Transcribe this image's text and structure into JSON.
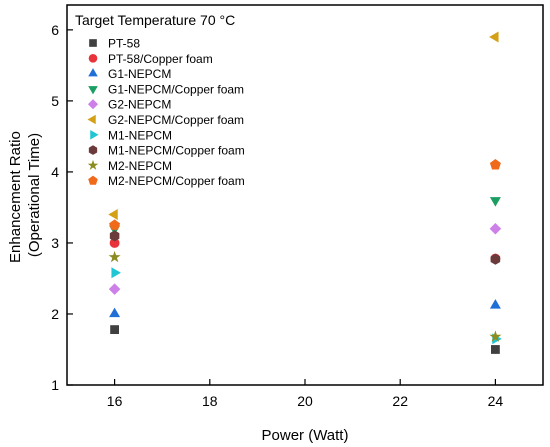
{
  "chart_data": {
    "type": "scatter",
    "title": "Target Temperature 70 °C",
    "xlabel": "Power (Watt)",
    "ylabel_lines": [
      "Enhancement Ratio",
      "(Operational Time)"
    ],
    "xlim": [
      15,
      25
    ],
    "ylim": [
      1,
      6.35
    ],
    "xticks": [
      16,
      18,
      20,
      22,
      24
    ],
    "yticks": [
      1,
      2,
      3,
      4,
      5,
      6
    ],
    "grid": false,
    "legend_position": "top-left",
    "series": [
      {
        "name": "PT-58",
        "marker": "square",
        "color": "#404040",
        "x": [
          16,
          24
        ],
        "y": [
          1.78,
          1.5
        ]
      },
      {
        "name": "PT-58/Copper foam",
        "marker": "circle",
        "color": "#e8333b",
        "x": [
          16,
          24
        ],
        "y": [
          3.0,
          2.78
        ]
      },
      {
        "name": "G1-NEPCM",
        "marker": "triangle-up",
        "color": "#1f6fd6",
        "x": [
          16,
          24
        ],
        "y": [
          2.0,
          2.12
        ]
      },
      {
        "name": "G1-NEPCM/Copper foam",
        "marker": "triangle-down",
        "color": "#1a9e62",
        "x": [
          16,
          24
        ],
        "y": [
          3.2,
          3.6
        ]
      },
      {
        "name": "G2-NEPCM",
        "marker": "diamond",
        "color": "#cc80e8",
        "x": [
          16,
          24
        ],
        "y": [
          2.35,
          3.2
        ]
      },
      {
        "name": "G2-NEPCM/Copper foam",
        "marker": "triangle-left",
        "color": "#d4a017",
        "x": [
          16,
          24
        ],
        "y": [
          3.4,
          5.9
        ]
      },
      {
        "name": "M1-NEPCM",
        "marker": "triangle-right",
        "color": "#20c6d4",
        "x": [
          16,
          24
        ],
        "y": [
          2.58,
          1.65
        ]
      },
      {
        "name": "M1-NEPCM/Copper foam",
        "marker": "hexagon",
        "color": "#6b3a3a",
        "x": [
          16,
          24
        ],
        "y": [
          3.1,
          2.77
        ]
      },
      {
        "name": "M2-NEPCM",
        "marker": "star",
        "color": "#8c8c20",
        "x": [
          16,
          24
        ],
        "y": [
          2.8,
          1.68
        ]
      },
      {
        "name": "M2-NEPCM/Copper foam",
        "marker": "pentagon",
        "color": "#f06a1c",
        "x": [
          16,
          24
        ],
        "y": [
          3.25,
          4.1
        ]
      }
    ]
  }
}
